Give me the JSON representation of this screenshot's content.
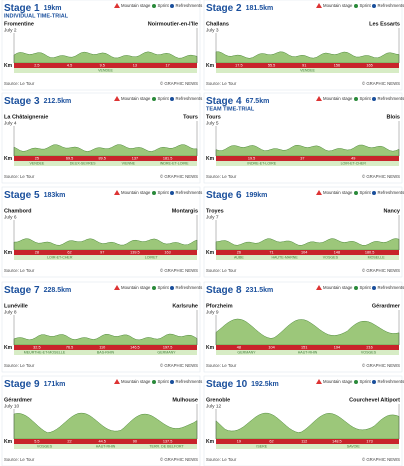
{
  "legend": {
    "mountain": "Mountain stage",
    "sprint": "Sprint",
    "refreshments": "Refreshments"
  },
  "source": "Source: Le Tour",
  "credit": "© GRAPHIC NEWS",
  "km": "Km",
  "stages": [
    {
      "title": "Stage 1",
      "distance": "19km",
      "kind": "INDIVIDUAL TIME-TRIAL",
      "start": "Fromentine",
      "date": "July 2",
      "finish": "Noirmoutier-en-l'Ile",
      "marks": [
        "2.5",
        "4.5",
        "9.5",
        "13",
        "17"
      ],
      "regions": [
        "VENDEE"
      ]
    },
    {
      "title": "Stage 2",
      "distance": "181.5km",
      "start": "Challans",
      "date": "July 3",
      "finish": "Les Essarts",
      "marks": [
        "17.5",
        "55.5",
        "91",
        "156",
        "165"
      ],
      "regions": [
        "VENDEE"
      ]
    },
    {
      "title": "Stage 3",
      "distance": "212.5km",
      "start": "La Châtaigneraie",
      "date": "July 4",
      "finish": "Tours",
      "marks": [
        "25",
        "69.5",
        "89.5",
        "137",
        "181.5"
      ],
      "regions": [
        "VENDEE",
        "DEUX-SEVRES",
        "VIENNE",
        "INDRE-ET-LOIRE"
      ]
    },
    {
      "title": "Stage 4",
      "distance": "67.5km",
      "kind": "TEAM TIME-TRIAL",
      "start": "Tours",
      "date": "July 5",
      "finish": "Blois",
      "marks": [
        "19.5",
        "37",
        "49"
      ],
      "regions": [
        "INDRE-ET-LOIRE",
        "LOIR-ET-CHER"
      ]
    },
    {
      "title": "Stage 5",
      "distance": "183km",
      "start": "Chambord",
      "date": "July 6",
      "finish": "Montargis",
      "marks": [
        "28",
        "62",
        "97",
        "139.5",
        "163"
      ],
      "regions": [
        "LOIR-ET-CHER",
        "LOIRET"
      ]
    },
    {
      "title": "Stage 6",
      "distance": "199km",
      "start": "Troyes",
      "date": "July 7",
      "finish": "Nancy",
      "marks": [
        "26",
        "71",
        "104",
        "148",
        "180.5"
      ],
      "regions": [
        "AUBE",
        "HAUTE-MARNE",
        "VOSGES",
        "MOSELLE"
      ]
    },
    {
      "title": "Stage 7",
      "distance": "228.5km",
      "start": "Lunéville",
      "date": "July 8",
      "finish": "Karlsruhe",
      "marks": [
        "32.5",
        "76.5",
        "110",
        "146.5",
        "197.5"
      ],
      "regions": [
        "MEURTHE-ET-MOSELLE",
        "BAS-RHIN",
        "GERMANY"
      ]
    },
    {
      "title": "Stage 8",
      "distance": "231.5km",
      "start": "Pforzheim",
      "date": "July 9",
      "finish": "Gérardmer",
      "marks": [
        "48",
        "104",
        "151",
        "194",
        "216"
      ],
      "regions": [
        "GERMANY",
        "HAUT-RHIN",
        "VOSGES"
      ]
    },
    {
      "title": "Stage 9",
      "distance": "171km",
      "start": "Gérardmer",
      "date": "July 10",
      "finish": "Mulhouse",
      "marks": [
        "5.5",
        "22",
        "44.5",
        "90",
        "137.5"
      ],
      "regions": [
        "VOSGES",
        "HAUT-RHIN",
        "TERR. DE BELFORT"
      ]
    },
    {
      "title": "Stage 10",
      "distance": "192.5km",
      "start": "Grenoble",
      "date": "July 12",
      "finish": "Courchevel Altiport",
      "marks": [
        "19",
        "62",
        "112",
        "148.5",
        "173"
      ],
      "regions": [
        "ISERE",
        "SAVOIE"
      ]
    }
  ]
}
